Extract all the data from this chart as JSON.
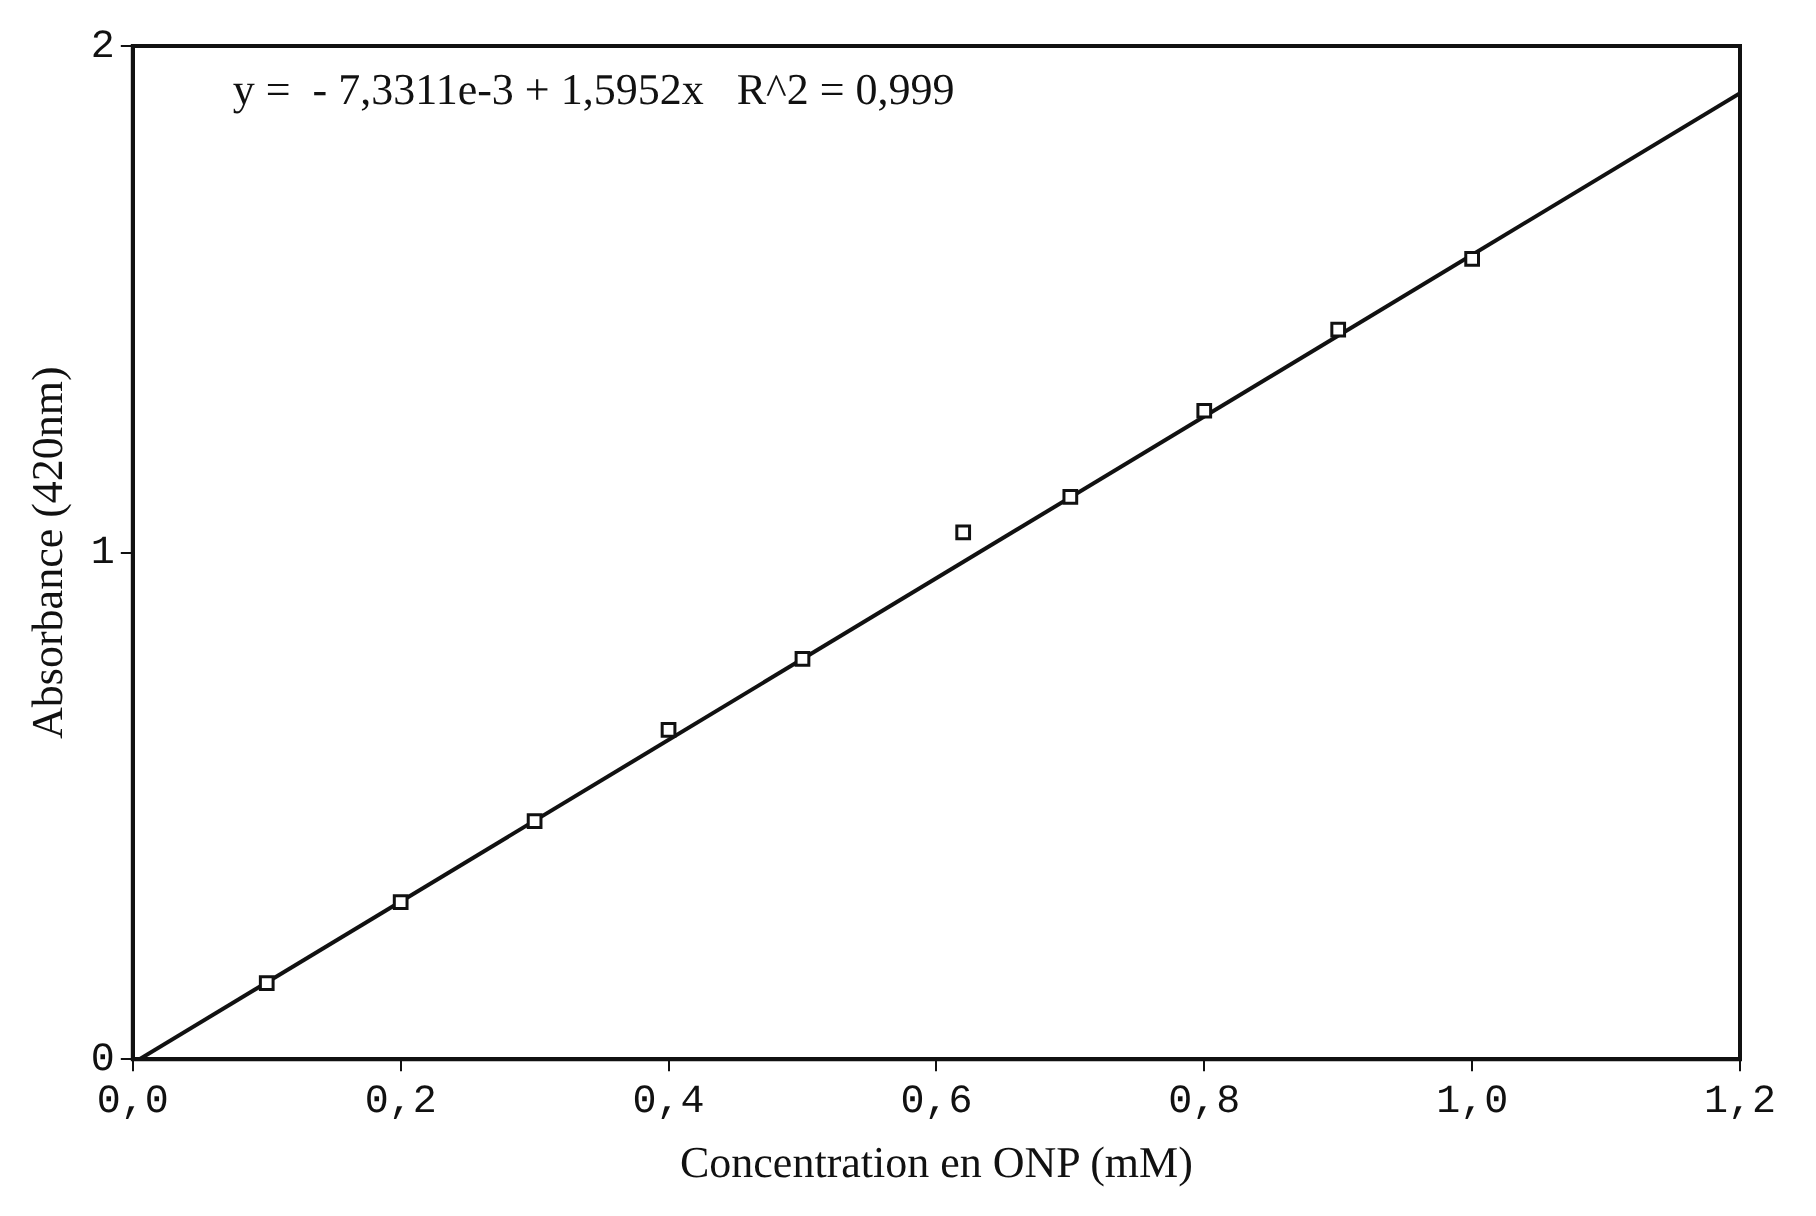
{
  "chart_data": {
    "type": "scatter",
    "xlabel": "Concentration en ONP (mM)",
    "ylabel": "Absorbance (420nm)",
    "annotations": [
      "y =  - 7,3311e-3 + 1,5952x   R^2 = 0,999"
    ],
    "xlim": [
      0,
      1.2
    ],
    "xticks": [
      {
        "value": 0,
        "label": "0,0"
      },
      {
        "value": 0.2,
        "label": "0,2"
      },
      {
        "value": 0.4,
        "label": "0,4"
      },
      {
        "value": 0.6,
        "label": "0,6"
      },
      {
        "value": 0.8,
        "label": "0,8"
      },
      {
        "value": 1.0,
        "label": "1,0"
      },
      {
        "value": 1.2,
        "label": "1,2"
      }
    ],
    "ylim": [
      0,
      2
    ],
    "yticks": [
      0,
      1,
      2
    ],
    "grid": false,
    "legend": false,
    "series": [
      {
        "type": "scatter",
        "color": "#111111",
        "marker": "square",
        "x": [
          0.1,
          0.2,
          0.3,
          0.4,
          0.5,
          0.62,
          0.7,
          0.8,
          0.9,
          1.0
        ],
        "values": [
          0.15,
          0.31,
          0.47,
          0.65,
          0.79,
          1.04,
          1.11,
          1.28,
          1.44,
          1.58
        ]
      },
      {
        "type": "line",
        "color": "#111111",
        "marker": "none",
        "line_style": "solid",
        "x": [
          0.005,
          1.2
        ],
        "values": [
          0.0,
          1.907
        ]
      }
    ]
  }
}
